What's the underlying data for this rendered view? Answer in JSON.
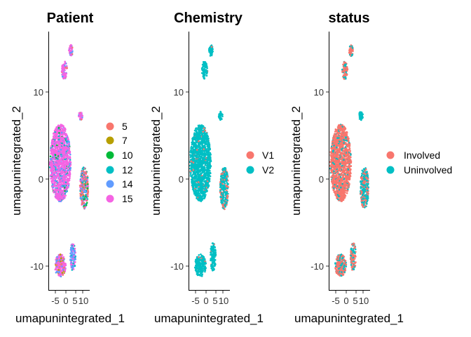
{
  "chart_data": [
    {
      "type": "scatter",
      "title": "Patient",
      "xlabel": "umapunintegrated_1",
      "ylabel": "umapunintegrated_2",
      "x_ticks": [
        "-5",
        "0",
        "5",
        "10"
      ],
      "y_ticks": [
        "10",
        "0",
        "-10"
      ],
      "xlim": [
        -7,
        13
      ],
      "ylim": [
        -13,
        17
      ],
      "legend_position": "right",
      "series": [
        {
          "name": "5",
          "color": "#F8766D"
        },
        {
          "name": "7",
          "color": "#B79F00"
        },
        {
          "name": "10",
          "color": "#00BA38"
        },
        {
          "name": "12",
          "color": "#00BFC4"
        },
        {
          "name": "14",
          "color": "#619CFF"
        },
        {
          "name": "15",
          "color": "#F564E3"
        }
      ]
    },
    {
      "type": "scatter",
      "title": "Chemistry",
      "xlabel": "umapunintegrated_1",
      "ylabel": "umapunintegrated_2",
      "x_ticks": [
        "-5",
        "0",
        "5",
        "10"
      ],
      "y_ticks": [
        "10",
        "0",
        "-10"
      ],
      "xlim": [
        -7,
        13
      ],
      "ylim": [
        -13,
        17
      ],
      "legend_position": "right",
      "series": [
        {
          "name": "V1",
          "color": "#F8766D"
        },
        {
          "name": "V2",
          "color": "#00BFC4"
        }
      ]
    },
    {
      "type": "scatter",
      "title": "status",
      "xlabel": "umapunintegrated_1",
      "ylabel": "umapunintegrated_2",
      "x_ticks": [
        "-5",
        "0",
        "5",
        "10"
      ],
      "y_ticks": [
        "10",
        "0",
        "-10"
      ],
      "xlim": [
        -7,
        13
      ],
      "ylim": [
        -13,
        17
      ],
      "legend_position": "right",
      "series": [
        {
          "name": "Involved",
          "color": "#F8766D"
        },
        {
          "name": "Uninvolved",
          "color": "#00BFC4"
        }
      ]
    }
  ]
}
